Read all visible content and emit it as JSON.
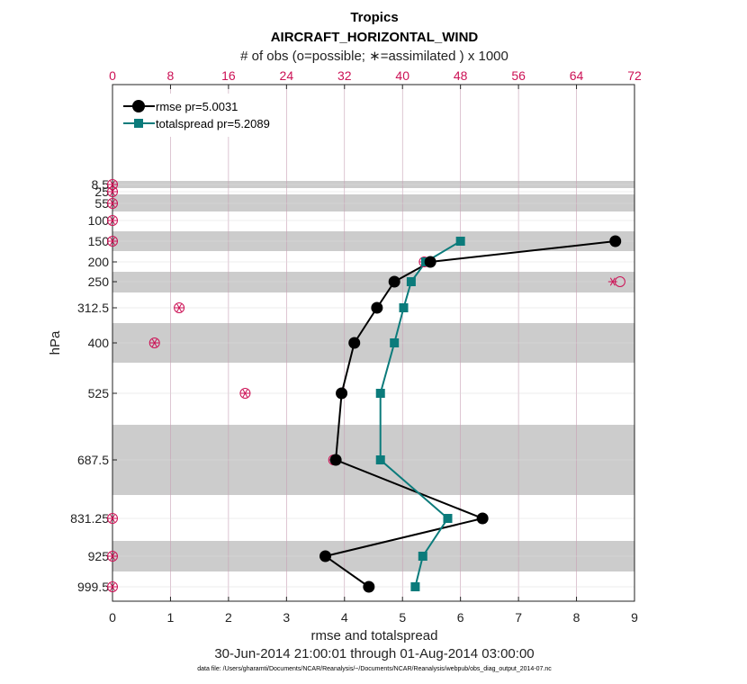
{
  "chart_data": {
    "type": "line",
    "title": "Tropics",
    "subtitle": "AIRCRAFT_HORIZONTAL_WIND",
    "top_axis_label": "# of obs (o=possible; ∗=assimilated ) x 1000",
    "xlabel": "rmse and totalspread",
    "ylabel": "hPa",
    "date_range": "30-Jun-2014 21:00:01 through 01-Aug-2014 03:00:00",
    "footnote": "data file: /Users/gharamti/Documents/NCAR/Reanalysis/~/Documents/NCAR/Reanalysis/webpub/obs_diag_output_2014-07.nc",
    "xlim": [
      0,
      9
    ],
    "x_ticks": [
      "0",
      "1",
      "2",
      "3",
      "4",
      "5",
      "6",
      "7",
      "8",
      "9"
    ],
    "top_xlim": [
      0,
      72
    ],
    "top_ticks": [
      "0",
      "8",
      "16",
      "24",
      "32",
      "40",
      "48",
      "56",
      "64",
      "72"
    ],
    "levels": [
      8.5,
      25,
      55,
      100,
      150,
      200,
      250,
      312.5,
      400,
      525,
      687.5,
      831.25,
      925,
      999.5
    ],
    "level_labels": [
      "8.5",
      "25",
      "55",
      "100",
      "150",
      "200",
      "250",
      "312.5",
      "400",
      "525",
      "687.5",
      "831.25",
      "925",
      "999.5"
    ],
    "series": [
      {
        "name": "rmse pr=5.0031",
        "color": "#000000",
        "levels": [
          150,
          200,
          250,
          312.5,
          400,
          525,
          687.5,
          831.25,
          925,
          999.5
        ],
        "values": [
          8.67,
          5.48,
          4.86,
          4.56,
          4.17,
          3.95,
          3.85,
          6.38,
          3.67,
          4.42
        ]
      },
      {
        "name": "totalspread pr=5.2089",
        "color": "#0b7b7b",
        "levels": [
          150,
          200,
          250,
          312.5,
          400,
          525,
          687.5,
          831.25,
          925,
          999.5
        ],
        "values": [
          6.0,
          5.4,
          5.15,
          5.02,
          4.86,
          4.62,
          4.62,
          5.78,
          5.35,
          5.22
        ]
      }
    ],
    "obs_possible": {
      "levels": [
        8.5,
        25,
        55,
        100,
        150,
        200,
        250,
        312.5,
        400,
        525,
        687.5,
        831.25,
        925,
        999.5
      ],
      "values": [
        0,
        0,
        0,
        0,
        0,
        43.0,
        70.0,
        9.2,
        5.8,
        18.3,
        30.5,
        0,
        0,
        0
      ]
    },
    "obs_assimilated": {
      "levels": [
        8.5,
        25,
        55,
        100,
        150,
        200,
        250,
        312.5,
        400,
        525,
        687.5,
        831.25,
        925,
        999.5
      ],
      "values": [
        0,
        0,
        0,
        0,
        0,
        43.0,
        69.0,
        9.2,
        5.8,
        18.3,
        30.5,
        0,
        0,
        0
      ]
    },
    "colors": {
      "obs": "#cc1155",
      "band": "#cccccc",
      "grid": "#c8a0b4",
      "hgrid": "#dcdcdc"
    }
  }
}
